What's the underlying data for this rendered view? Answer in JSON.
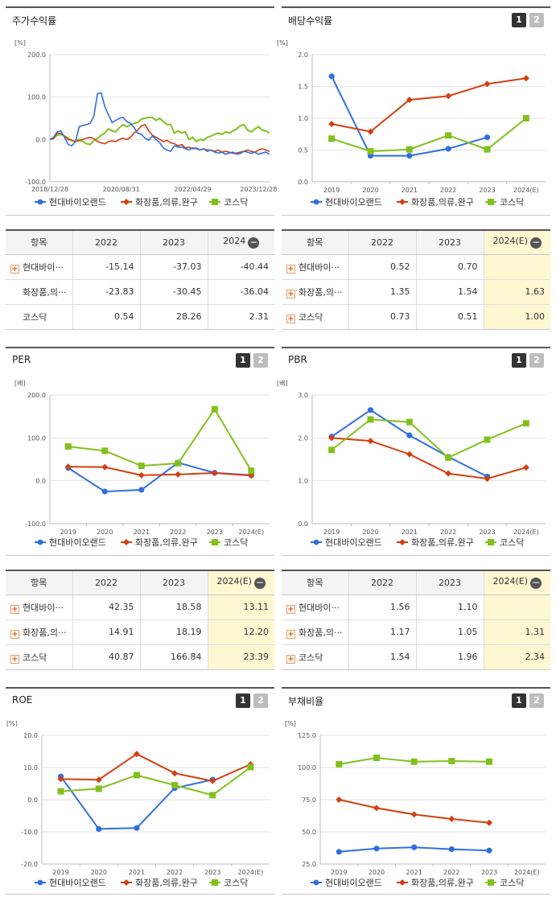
{
  "colors": {
    "hyundai": "#2f6fe0",
    "cosmetics": "#d33f0f",
    "kosdaq": "#82c11d",
    "highlight": "#fdf7d2"
  },
  "legend": [
    "현대바이오랜드",
    "화장품,의류,완구",
    "코스닥"
  ],
  "charts": [
    {
      "key": "stock",
      "title": "주가수익률",
      "unit": "[%]",
      "pager": false,
      "chart_data": {
        "type": "line",
        "ylim": [
          -100,
          200
        ],
        "yticks": [
          "200.0",
          "100.0",
          "0.0",
          "-100.0"
        ],
        "xticks": [
          "2018/12/28",
          "2020/08/31",
          "2022/04/29",
          "2023/12/28"
        ],
        "x_range": [
          0,
          60
        ],
        "series": [
          {
            "name": "현대바이오랜드",
            "x": [
              0,
              1,
              2,
              3,
              4,
              5,
              6,
              7,
              8,
              9,
              10,
              11,
              12,
              13,
              14,
              15,
              16,
              17,
              18,
              19,
              20,
              21,
              22,
              23,
              24,
              25,
              26,
              27,
              28,
              29,
              30,
              31,
              32,
              33,
              34,
              35,
              36,
              37,
              38,
              39,
              40,
              41,
              42,
              43,
              44,
              45,
              46,
              47,
              48,
              49,
              50,
              51,
              52,
              53,
              54,
              55,
              56,
              57,
              58,
              59,
              60
            ],
            "y": [
              0,
              5,
              18,
              20,
              5,
              -12,
              -15,
              -5,
              30,
              33,
              35,
              38,
              55,
              108,
              110,
              78,
              58,
              40,
              45,
              50,
              52,
              42,
              38,
              28,
              15,
              12,
              3,
              -2,
              8,
              0,
              -8,
              -20,
              -25,
              -28,
              -15,
              -18,
              -18,
              -22,
              -25,
              -20,
              -22,
              -25,
              -22,
              -28,
              -25,
              -30,
              -32,
              -30,
              -35,
              -32,
              -30,
              -35,
              -33,
              -28,
              -30,
              -33,
              -30,
              -35,
              -32,
              -30,
              -35
            ]
          },
          {
            "name": "화장품,의류,완구",
            "x": [
              0,
              1,
              2,
              3,
              4,
              5,
              6,
              7,
              8,
              9,
              10,
              11,
              12,
              13,
              14,
              15,
              16,
              17,
              18,
              19,
              20,
              21,
              22,
              23,
              24,
              25,
              26,
              27,
              28,
              29,
              30,
              31,
              32,
              33,
              34,
              35,
              36,
              37,
              38,
              39,
              40,
              41,
              42,
              43,
              44,
              45,
              46,
              47,
              48,
              49,
              50,
              51,
              52,
              53,
              54,
              55,
              56,
              57,
              58,
              59,
              60
            ],
            "y": [
              0,
              2,
              15,
              14,
              8,
              0,
              -2,
              -5,
              -3,
              0,
              3,
              5,
              2,
              -5,
              -8,
              -10,
              -5,
              -3,
              -5,
              0,
              3,
              0,
              5,
              15,
              22,
              32,
              35,
              20,
              10,
              5,
              0,
              -5,
              -2,
              -8,
              -10,
              -15,
              -12,
              -20,
              -18,
              -22,
              -20,
              -25,
              -22,
              -25,
              -25,
              -28,
              -25,
              -30,
              -28,
              -30,
              -33,
              -32,
              -30,
              -28,
              -25,
              -28,
              -30,
              -25,
              -22,
              -25,
              -28
            ]
          },
          {
            "name": "코스닥",
            "x": [
              0,
              1,
              2,
              3,
              4,
              5,
              6,
              7,
              8,
              9,
              10,
              11,
              12,
              13,
              14,
              15,
              16,
              17,
              18,
              19,
              20,
              21,
              22,
              23,
              24,
              25,
              26,
              27,
              28,
              29,
              30,
              31,
              32,
              33,
              34,
              35,
              36,
              37,
              38,
              39,
              40,
              41,
              42,
              43,
              44,
              45,
              46,
              47,
              48,
              49,
              50,
              51,
              52,
              53,
              54,
              55,
              56,
              57,
              58,
              59,
              60
            ],
            "y": [
              0,
              3,
              10,
              12,
              8,
              3,
              -3,
              -5,
              0,
              -5,
              -10,
              -12,
              -3,
              2,
              10,
              15,
              25,
              20,
              18,
              28,
              35,
              30,
              35,
              38,
              40,
              48,
              50,
              52,
              52,
              45,
              50,
              42,
              35,
              35,
              15,
              20,
              15,
              18,
              0,
              5,
              -5,
              0,
              -2,
              5,
              8,
              12,
              15,
              12,
              18,
              15,
              20,
              25,
              32,
              35,
              22,
              18,
              25,
              30,
              22,
              20,
              15
            ]
          }
        ]
      }
    },
    {
      "key": "dividend",
      "title": "배당수익률",
      "unit": "[%]",
      "pager": true,
      "chart_data": {
        "type": "line",
        "ylim": [
          0,
          2.0
        ],
        "yticks": [
          "2.0",
          "1.5",
          "1.0",
          "0.5",
          "0.0"
        ],
        "categories": [
          "2019",
          "2020",
          "2021",
          "2022",
          "2023",
          "2024(E)"
        ],
        "series": [
          {
            "name": "현대바이오랜드",
            "values": [
              1.66,
              0.41,
              0.41,
              0.52,
              0.7,
              null
            ]
          },
          {
            "name": "화장품,의류,완구",
            "values": [
              0.91,
              0.79,
              1.29,
              1.35,
              1.54,
              1.63
            ]
          },
          {
            "name": "코스닥",
            "values": [
              0.68,
              0.48,
              0.51,
              0.73,
              0.51,
              1.0
            ]
          }
        ]
      }
    },
    {
      "key": "per",
      "title": "PER",
      "unit": "[배]",
      "pager": true,
      "chart_data": {
        "type": "line",
        "ylim": [
          -100,
          200
        ],
        "yticks": [
          "200.0",
          "100.0",
          "0.0",
          "-100.0"
        ],
        "categories": [
          "2019",
          "2020",
          "2021",
          "2022",
          "2023",
          "2024(E)"
        ],
        "series": [
          {
            "name": "현대바이오랜드",
            "values": [
              30,
              -25,
              -21,
              42.35,
              18.58,
              13.11
            ]
          },
          {
            "name": "화장품,의류,완구",
            "values": [
              33,
              32,
              13,
              14.91,
              18.19,
              12.2
            ]
          },
          {
            "name": "코스닥",
            "values": [
              80,
              70,
              35,
              40.87,
              166.84,
              23.39
            ]
          }
        ]
      }
    },
    {
      "key": "pbr",
      "title": "PBR",
      "unit": "[배]",
      "pager": true,
      "chart_data": {
        "type": "line",
        "ylim": [
          0,
          3.0
        ],
        "yticks": [
          "3.0",
          "2.0",
          "1.0",
          "0.0"
        ],
        "categories": [
          "2019",
          "2020",
          "2021",
          "2022",
          "2023",
          "2024(E)"
        ],
        "series": [
          {
            "name": "현대바이오랜드",
            "values": [
              2.03,
              2.65,
              2.06,
              1.56,
              1.1,
              null
            ]
          },
          {
            "name": "화장품,의류,완구",
            "values": [
              2.0,
              1.93,
              1.62,
              1.17,
              1.05,
              1.31
            ]
          },
          {
            "name": "코스닥",
            "values": [
              1.72,
              2.43,
              2.37,
              1.54,
              1.96,
              2.34
            ]
          }
        ]
      }
    },
    {
      "key": "roe",
      "title": "ROE",
      "unit": "[%]",
      "pager": true,
      "chart_data": {
        "type": "line",
        "ylim": [
          -20,
          20
        ],
        "yticks": [
          "20.0",
          "10.0",
          "0.0",
          "-10.0",
          "-20.0"
        ],
        "categories": [
          "2019",
          "2020",
          "2021",
          "2022",
          "2023",
          "2024(E)"
        ],
        "series": [
          {
            "name": "현대바이오랜드",
            "values": [
              7.2,
              -9.1,
              -8.8,
              3.6,
              6.2,
              null
            ]
          },
          {
            "name": "화장품,의류,완구",
            "values": [
              6.4,
              6.2,
              14.2,
              8.2,
              5.8,
              11.0
            ]
          },
          {
            "name": "코스닥",
            "values": [
              2.6,
              3.4,
              7.6,
              4.5,
              1.4,
              10.1
            ]
          }
        ]
      }
    },
    {
      "key": "debt",
      "title": "부채비율",
      "unit": "[%]",
      "pager": true,
      "chart_data": {
        "type": "line",
        "ylim": [
          25,
          125
        ],
        "yticks": [
          "125.0",
          "100.0",
          "75.0",
          "50.0",
          "25.0"
        ],
        "categories": [
          "2019",
          "2020",
          "2021",
          "2022",
          "2023",
          "2024(E)"
        ],
        "series": [
          {
            "name": "현대바이오랜드",
            "values": [
              34.5,
              37,
              38,
              36.5,
              35.5,
              null
            ]
          },
          {
            "name": "화장품,의류,완구",
            "values": [
              75,
              68.5,
              63.5,
              60,
              57,
              null
            ]
          },
          {
            "name": "코스닥",
            "values": [
              102.5,
              107.5,
              104.5,
              105,
              104.5,
              null
            ]
          }
        ]
      }
    }
  ],
  "tables": [
    {
      "key": "stock",
      "headers": [
        "항목",
        "2022",
        "2023",
        "2024"
      ],
      "minus_on_last": true,
      "rows": [
        {
          "name": "현대바이···",
          "plus": true,
          "values": [
            "-15.14",
            "-37.03",
            "-40.44"
          ]
        },
        {
          "name": "화장품,의···",
          "plus": false,
          "values": [
            "-23.83",
            "-30.45",
            "-36.04"
          ]
        },
        {
          "name": "코스닥",
          "plus": false,
          "values": [
            "0.54",
            "28.26",
            "2.31"
          ]
        }
      ],
      "highlight_last": false
    },
    {
      "key": "dividend",
      "headers": [
        "항목",
        "2022",
        "2023",
        "2024(E)"
      ],
      "minus_on_last": true,
      "rows": [
        {
          "name": "현대바이···",
          "plus": true,
          "values": [
            "0.52",
            "0.70",
            ""
          ]
        },
        {
          "name": "화장품,의···",
          "plus": true,
          "values": [
            "1.35",
            "1.54",
            "1.63"
          ]
        },
        {
          "name": "코스닥",
          "plus": true,
          "values": [
            "0.73",
            "0.51",
            "1.00"
          ]
        }
      ],
      "highlight_last": true
    },
    {
      "key": "per",
      "headers": [
        "항목",
        "2022",
        "2023",
        "2024(E)"
      ],
      "minus_on_last": true,
      "rows": [
        {
          "name": "현대바이···",
          "plus": true,
          "values": [
            "42.35",
            "18.58",
            "13.11"
          ]
        },
        {
          "name": "화장품,의···",
          "plus": true,
          "values": [
            "14.91",
            "18.19",
            "12.20"
          ]
        },
        {
          "name": "코스닥",
          "plus": true,
          "values": [
            "40.87",
            "166.84",
            "23.39"
          ]
        }
      ],
      "highlight_last": true
    },
    {
      "key": "pbr",
      "headers": [
        "항목",
        "2022",
        "2023",
        "2024(E)"
      ],
      "minus_on_last": true,
      "rows": [
        {
          "name": "현대바이···",
          "plus": true,
          "values": [
            "1.56",
            "1.10",
            ""
          ]
        },
        {
          "name": "화장품,의···",
          "plus": true,
          "values": [
            "1.17",
            "1.05",
            "1.31"
          ]
        },
        {
          "name": "코스닥",
          "plus": true,
          "values": [
            "1.54",
            "1.96",
            "2.34"
          ]
        }
      ],
      "highlight_last": true
    }
  ]
}
